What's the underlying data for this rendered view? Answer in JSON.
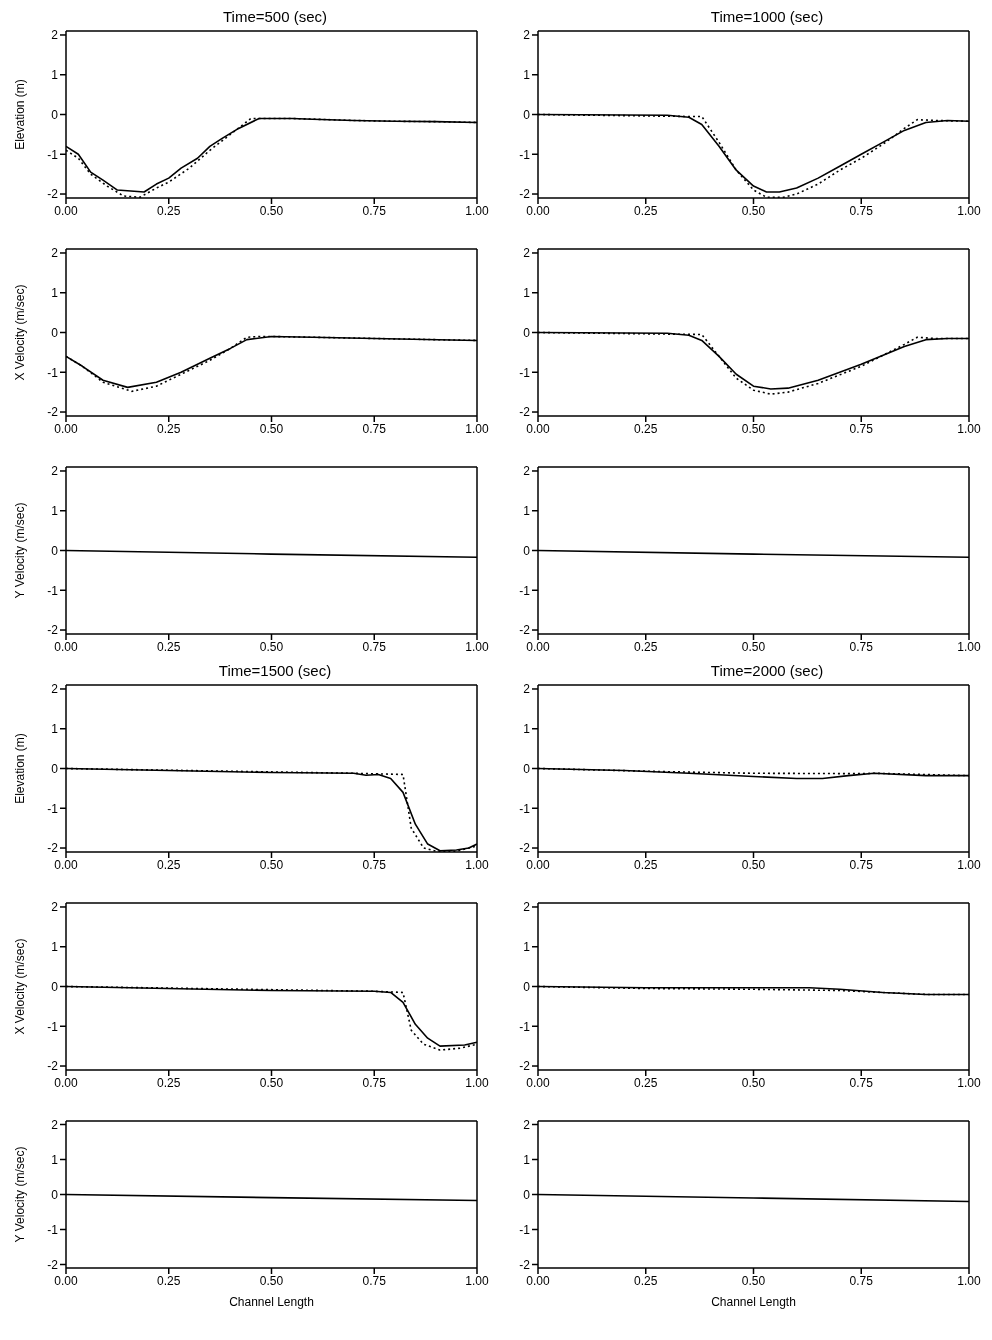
{
  "chart_data": [
    {
      "type": "line",
      "title": "Time=500 (sec)",
      "ylabel": "Elevation (m)",
      "xlim": [
        0,
        1
      ],
      "ylim": [
        -2.1,
        2.1
      ],
      "xticks": [
        {
          "value": 0,
          "label": "0.00"
        },
        {
          "value": 0.25,
          "label": "0.25"
        },
        {
          "value": 0.5,
          "label": "0.50"
        },
        {
          "value": 0.75,
          "label": "0.75"
        },
        {
          "value": 1,
          "label": "1.00"
        }
      ],
      "yticks": [
        -2,
        -1,
        0,
        1,
        2
      ],
      "grid": false,
      "series": [
        {
          "color": "#000000",
          "line_style": "solid",
          "x": [
            0,
            0.03,
            0.06,
            0.09,
            0.125,
            0.19,
            0.22,
            0.25,
            0.28,
            0.32,
            0.35,
            0.38,
            0.42,
            0.47,
            0.55,
            0.6,
            0.7,
            0.8,
            0.9,
            1.0
          ],
          "values": [
            -0.8,
            -1.0,
            -1.45,
            -1.65,
            -1.9,
            -1.95,
            -1.75,
            -1.6,
            -1.35,
            -1.1,
            -0.8,
            -0.6,
            -0.35,
            -0.1,
            -0.1,
            -0.12,
            -0.15,
            -0.17,
            -0.18,
            -0.2
          ]
        },
        {
          "color": "#000000",
          "line_style": "dotted",
          "x": [
            0,
            0.03,
            0.06,
            0.1,
            0.14,
            0.18,
            0.22,
            0.25,
            0.3,
            0.35,
            0.4,
            0.45,
            0.47,
            0.55,
            0.7,
            0.8,
            0.9,
            1.0
          ],
          "values": [
            -0.9,
            -1.1,
            -1.5,
            -1.8,
            -2.05,
            -2.08,
            -1.85,
            -1.7,
            -1.35,
            -0.9,
            -0.5,
            -0.1,
            -0.1,
            -0.1,
            -0.15,
            -0.17,
            -0.18,
            -0.2
          ]
        }
      ]
    },
    {
      "type": "line",
      "title": "Time=1000 (sec)",
      "xlim": [
        0,
        1
      ],
      "ylim": [
        -2.1,
        2.1
      ],
      "xticks": [
        {
          "value": 0,
          "label": "0.00"
        },
        {
          "value": 0.25,
          "label": "0.25"
        },
        {
          "value": 0.5,
          "label": "0.50"
        },
        {
          "value": 0.75,
          "label": "0.75"
        },
        {
          "value": 1,
          "label": "1.00"
        }
      ],
      "yticks": [
        -2,
        -1,
        0,
        1,
        2
      ],
      "grid": false,
      "series": [
        {
          "color": "#000000",
          "line_style": "solid",
          "x": [
            0,
            0.3,
            0.35,
            0.38,
            0.42,
            0.46,
            0.5,
            0.53,
            0.56,
            0.6,
            0.65,
            0.7,
            0.75,
            0.8,
            0.85,
            0.9,
            0.95,
            1.0
          ],
          "values": [
            0,
            -0.02,
            -0.07,
            -0.25,
            -0.8,
            -1.4,
            -1.8,
            -1.95,
            -1.95,
            -1.85,
            -1.6,
            -1.3,
            -1.0,
            -0.7,
            -0.4,
            -0.2,
            -0.15,
            -0.17
          ]
        },
        {
          "color": "#000000",
          "line_style": "dotted",
          "x": [
            0,
            0.35,
            0.38,
            0.42,
            0.46,
            0.5,
            0.53,
            0.57,
            0.6,
            0.65,
            0.7,
            0.75,
            0.8,
            0.85,
            0.88,
            0.92,
            1.0
          ],
          "values": [
            0,
            -0.05,
            -0.05,
            -0.7,
            -1.4,
            -1.9,
            -2.08,
            -2.08,
            -2.0,
            -1.75,
            -1.4,
            -1.1,
            -0.75,
            -0.35,
            -0.13,
            -0.15,
            -0.17
          ]
        }
      ]
    },
    {
      "type": "line",
      "ylabel": "X Velocity (m/sec)",
      "xlim": [
        0,
        1
      ],
      "ylim": [
        -2.1,
        2.1
      ],
      "xticks": [
        {
          "value": 0,
          "label": "0.00"
        },
        {
          "value": 0.25,
          "label": "0.25"
        },
        {
          "value": 0.5,
          "label": "0.50"
        },
        {
          "value": 0.75,
          "label": "0.75"
        },
        {
          "value": 1,
          "label": "1.00"
        }
      ],
      "yticks": [
        -2,
        -1,
        0,
        1,
        2
      ],
      "grid": false,
      "series": [
        {
          "color": "#000000",
          "line_style": "solid",
          "x": [
            0,
            0.04,
            0.09,
            0.15,
            0.22,
            0.28,
            0.35,
            0.4,
            0.44,
            0.5,
            0.6,
            0.75,
            1.0
          ],
          "values": [
            -0.6,
            -0.85,
            -1.2,
            -1.38,
            -1.25,
            -1.0,
            -0.65,
            -0.4,
            -0.18,
            -0.1,
            -0.12,
            -0.15,
            -0.2
          ]
        },
        {
          "color": "#000000",
          "line_style": "dotted",
          "x": [
            0,
            0.04,
            0.09,
            0.16,
            0.22,
            0.28,
            0.35,
            0.4,
            0.44,
            0.47,
            0.5,
            1.0
          ],
          "values": [
            -0.6,
            -0.85,
            -1.25,
            -1.48,
            -1.35,
            -1.05,
            -0.7,
            -0.4,
            -0.12,
            -0.1,
            -0.1,
            -0.2
          ]
        }
      ]
    },
    {
      "type": "line",
      "xlim": [
        0,
        1
      ],
      "ylim": [
        -2.1,
        2.1
      ],
      "xticks": [
        {
          "value": 0,
          "label": "0.00"
        },
        {
          "value": 0.25,
          "label": "0.25"
        },
        {
          "value": 0.5,
          "label": "0.50"
        },
        {
          "value": 0.75,
          "label": "0.75"
        },
        {
          "value": 1,
          "label": "1.00"
        }
      ],
      "yticks": [
        -2,
        -1,
        0,
        1,
        2
      ],
      "grid": false,
      "series": [
        {
          "color": "#000000",
          "line_style": "solid",
          "x": [
            0,
            0.3,
            0.35,
            0.38,
            0.42,
            0.46,
            0.5,
            0.54,
            0.58,
            0.65,
            0.75,
            0.85,
            0.9,
            0.95,
            1.0
          ],
          "values": [
            0,
            -0.02,
            -0.07,
            -0.2,
            -0.6,
            -1.05,
            -1.35,
            -1.42,
            -1.4,
            -1.2,
            -0.8,
            -0.35,
            -0.18,
            -0.15,
            -0.15
          ]
        },
        {
          "color": "#000000",
          "line_style": "dotted",
          "x": [
            0,
            0.38,
            0.42,
            0.46,
            0.5,
            0.54,
            0.58,
            0.65,
            0.75,
            0.85,
            0.88,
            0.92,
            1.0
          ],
          "values": [
            0,
            -0.05,
            -0.6,
            -1.15,
            -1.45,
            -1.55,
            -1.5,
            -1.28,
            -0.85,
            -0.3,
            -0.12,
            -0.15,
            -0.15
          ]
        }
      ]
    },
    {
      "type": "line",
      "ylabel": "Y Velocity (m/sec)",
      "xlim": [
        0,
        1
      ],
      "ylim": [
        -2.1,
        2.1
      ],
      "xticks": [
        {
          "value": 0,
          "label": "0.00"
        },
        {
          "value": 0.25,
          "label": "0.25"
        },
        {
          "value": 0.5,
          "label": "0.50"
        },
        {
          "value": 0.75,
          "label": "0.75"
        },
        {
          "value": 1,
          "label": "1.00"
        }
      ],
      "yticks": [
        -2,
        -1,
        0,
        1,
        2
      ],
      "grid": false,
      "series": [
        {
          "color": "#000000",
          "line_style": "solid",
          "x": [
            0,
            0.5,
            1.0
          ],
          "values": [
            0,
            -0.09,
            -0.17
          ]
        }
      ]
    },
    {
      "type": "line",
      "xlim": [
        0,
        1
      ],
      "ylim": [
        -2.1,
        2.1
      ],
      "xticks": [
        {
          "value": 0,
          "label": "0.00"
        },
        {
          "value": 0.25,
          "label": "0.25"
        },
        {
          "value": 0.5,
          "label": "0.50"
        },
        {
          "value": 0.75,
          "label": "0.75"
        },
        {
          "value": 1,
          "label": "1.00"
        }
      ],
      "yticks": [
        -2,
        -1,
        0,
        1,
        2
      ],
      "grid": false,
      "series": [
        {
          "color": "#000000",
          "line_style": "solid",
          "x": [
            0,
            0.5,
            1.0
          ],
          "values": [
            0,
            -0.09,
            -0.17
          ]
        }
      ]
    },
    {
      "type": "line",
      "title": "Time=1500 (sec)",
      "ylabel": "Elevation (m)",
      "xlim": [
        0,
        1
      ],
      "ylim": [
        -2.1,
        2.1
      ],
      "xticks": [
        {
          "value": 0,
          "label": "0.00"
        },
        {
          "value": 0.25,
          "label": "0.25"
        },
        {
          "value": 0.5,
          "label": "0.50"
        },
        {
          "value": 0.75,
          "label": "0.75"
        },
        {
          "value": 1,
          "label": "1.00"
        }
      ],
      "yticks": [
        -2,
        -1,
        0,
        1,
        2
      ],
      "grid": false,
      "series": [
        {
          "color": "#000000",
          "line_style": "solid",
          "x": [
            0,
            0.25,
            0.5,
            0.7,
            0.73,
            0.76,
            0.79,
            0.82,
            0.85,
            0.88,
            0.91,
            0.95,
            0.98,
            1.0
          ],
          "values": [
            0,
            -0.05,
            -0.1,
            -0.12,
            -0.17,
            -0.15,
            -0.25,
            -0.6,
            -1.4,
            -1.9,
            -2.07,
            -2.05,
            -2.0,
            -1.9
          ]
        },
        {
          "color": "#000000",
          "line_style": "dotted",
          "x": [
            0,
            0.7,
            0.82,
            0.84,
            0.87,
            0.9,
            0.95,
            1.0
          ],
          "values": [
            0,
            -0.12,
            -0.15,
            -1.5,
            -2.0,
            -2.08,
            -2.08,
            -1.95
          ]
        }
      ]
    },
    {
      "type": "line",
      "title": "Time=2000 (sec)",
      "xlim": [
        0,
        1
      ],
      "ylim": [
        -2.1,
        2.1
      ],
      "xticks": [
        {
          "value": 0,
          "label": "0.00"
        },
        {
          "value": 0.25,
          "label": "0.25"
        },
        {
          "value": 0.5,
          "label": "0.50"
        },
        {
          "value": 0.75,
          "label": "0.75"
        },
        {
          "value": 1,
          "label": "1.00"
        }
      ],
      "yticks": [
        -2,
        -1,
        0,
        1,
        2
      ],
      "grid": false,
      "series": [
        {
          "color": "#000000",
          "line_style": "solid",
          "x": [
            0,
            0.2,
            0.35,
            0.5,
            0.6,
            0.66,
            0.72,
            0.78,
            0.9,
            1.0
          ],
          "values": [
            0,
            -0.05,
            -0.12,
            -0.2,
            -0.25,
            -0.25,
            -0.18,
            -0.12,
            -0.18,
            -0.18
          ]
        },
        {
          "color": "#000000",
          "line_style": "dotted",
          "x": [
            0,
            0.3,
            0.5,
            0.75,
            0.78,
            1.0
          ],
          "values": [
            0,
            -0.08,
            -0.12,
            -0.13,
            -0.12,
            -0.18
          ]
        }
      ]
    },
    {
      "type": "line",
      "ylabel": "X Velocity (m/sec)",
      "xlim": [
        0,
        1
      ],
      "ylim": [
        -2.1,
        2.1
      ],
      "xticks": [
        {
          "value": 0,
          "label": "0.00"
        },
        {
          "value": 0.25,
          "label": "0.25"
        },
        {
          "value": 0.5,
          "label": "0.50"
        },
        {
          "value": 0.75,
          "label": "0.75"
        },
        {
          "value": 1,
          "label": "1.00"
        }
      ],
      "yticks": [
        -2,
        -1,
        0,
        1,
        2
      ],
      "grid": false,
      "series": [
        {
          "color": "#000000",
          "line_style": "solid",
          "x": [
            0,
            0.5,
            0.75,
            0.79,
            0.82,
            0.85,
            0.88,
            0.91,
            0.97,
            1.0
          ],
          "values": [
            0,
            -0.1,
            -0.12,
            -0.15,
            -0.4,
            -0.95,
            -1.3,
            -1.5,
            -1.47,
            -1.4
          ]
        },
        {
          "color": "#000000",
          "line_style": "dotted",
          "x": [
            0,
            0.75,
            0.82,
            0.84,
            0.87,
            0.91,
            0.96,
            1.0
          ],
          "values": [
            0,
            -0.12,
            -0.15,
            -1.1,
            -1.45,
            -1.6,
            -1.55,
            -1.45
          ]
        }
      ]
    },
    {
      "type": "line",
      "xlim": [
        0,
        1
      ],
      "ylim": [
        -2.1,
        2.1
      ],
      "xticks": [
        {
          "value": 0,
          "label": "0.00"
        },
        {
          "value": 0.25,
          "label": "0.25"
        },
        {
          "value": 0.5,
          "label": "0.50"
        },
        {
          "value": 0.75,
          "label": "0.75"
        },
        {
          "value": 1,
          "label": "1.00"
        }
      ],
      "yticks": [
        -2,
        -1,
        0,
        1,
        2
      ],
      "grid": false,
      "series": [
        {
          "color": "#000000",
          "line_style": "solid",
          "x": [
            0,
            0.25,
            0.5,
            0.63,
            0.7,
            0.8,
            0.9,
            1.0
          ],
          "values": [
            0,
            -0.03,
            -0.03,
            -0.03,
            -0.07,
            -0.15,
            -0.2,
            -0.2
          ]
        },
        {
          "color": "#000000",
          "line_style": "dotted",
          "x": [
            0,
            0.25,
            0.5,
            0.7,
            0.8,
            0.9,
            1.0
          ],
          "values": [
            0,
            -0.05,
            -0.07,
            -0.1,
            -0.15,
            -0.2,
            -0.2
          ]
        }
      ]
    },
    {
      "type": "line",
      "ylabel": "Y Velocity (m/sec)",
      "xlabel": "Channel Length",
      "xlim": [
        0,
        1
      ],
      "ylim": [
        -2.1,
        2.1
      ],
      "xticks": [
        {
          "value": 0,
          "label": "0.00"
        },
        {
          "value": 0.25,
          "label": "0.25"
        },
        {
          "value": 0.5,
          "label": "0.50"
        },
        {
          "value": 0.75,
          "label": "0.75"
        },
        {
          "value": 1,
          "label": "1.00"
        }
      ],
      "yticks": [
        -2,
        -1,
        0,
        1,
        2
      ],
      "grid": false,
      "series": [
        {
          "color": "#000000",
          "line_style": "solid",
          "x": [
            0,
            0.5,
            1.0
          ],
          "values": [
            0,
            -0.09,
            -0.17
          ]
        }
      ]
    },
    {
      "type": "line",
      "xlabel": "Channel Length",
      "xlim": [
        0,
        1
      ],
      "ylim": [
        -2.1,
        2.1
      ],
      "xticks": [
        {
          "value": 0,
          "label": "0.00"
        },
        {
          "value": 0.25,
          "label": "0.25"
        },
        {
          "value": 0.5,
          "label": "0.50"
        },
        {
          "value": 0.75,
          "label": "0.75"
        },
        {
          "value": 1,
          "label": "1.00"
        }
      ],
      "yticks": [
        -2,
        -1,
        0,
        1,
        2
      ],
      "grid": false,
      "series": [
        {
          "color": "#000000",
          "line_style": "solid",
          "x": [
            0,
            0.5,
            1.0
          ],
          "values": [
            0,
            -0.1,
            -0.2
          ]
        }
      ]
    }
  ]
}
